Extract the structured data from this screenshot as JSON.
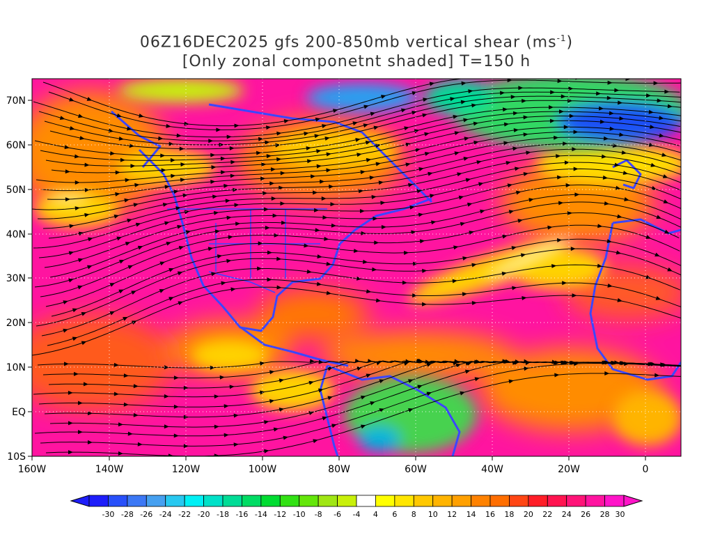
{
  "title": {
    "line1_prefix": "06Z16DEC2025 gfs 200-850mb vertical shear (ms",
    "line1_sup": "-1",
    "line1_suffix": ")",
    "line2": "[Only zonal componetnt shaded] T=150 h"
  },
  "axes": {
    "x_ticks": [
      "160W",
      "140W",
      "120W",
      "100W",
      "80W",
      "60W",
      "40W",
      "20W",
      "0"
    ],
    "y_ticks": [
      "70N",
      "60N",
      "50N",
      "40N",
      "30N",
      "20N",
      "10N",
      "EQ",
      "10S"
    ],
    "lon_range": [
      -160,
      10
    ],
    "lat_range": [
      -10,
      75
    ]
  },
  "colorbar": {
    "labels": [
      "-30",
      "-28",
      "-26",
      "-24",
      "-22",
      "-20",
      "-18",
      "-16",
      "-14",
      "-12",
      "-10",
      "-8",
      "-6",
      "-4",
      "4",
      "6",
      "8",
      "10",
      "12",
      "14",
      "16",
      "18",
      "20",
      "22",
      "24",
      "26",
      "28",
      "30"
    ],
    "colors": [
      "#1e1efa",
      "#2850fa",
      "#3c78f5",
      "#46a0f0",
      "#28c8f0",
      "#00f0f5",
      "#00e1c8",
      "#00dc96",
      "#00dc64",
      "#00dc32",
      "#32e114",
      "#64e60a",
      "#a0e614",
      "#c8f00a",
      "#ffffff",
      "#ffff00",
      "#ffe600",
      "#ffc800",
      "#ffb400",
      "#ffa000",
      "#ff8200",
      "#ff6e00",
      "#ff4614",
      "#ff1e28",
      "#ff1450",
      "#ff1478",
      "#ff14a0",
      "#ff14c8"
    ]
  },
  "field_colors": {
    "magenta": "#ff14a0",
    "pink": "#ff1478",
    "red": "#ff3c3c",
    "orange": "#ff8c00",
    "yellow": "#ffdc00",
    "green": "#32d764",
    "teal": "#00d2a0",
    "blue": "#1e50f5",
    "coast": "#3c46ff",
    "streamline": "#000000"
  }
}
